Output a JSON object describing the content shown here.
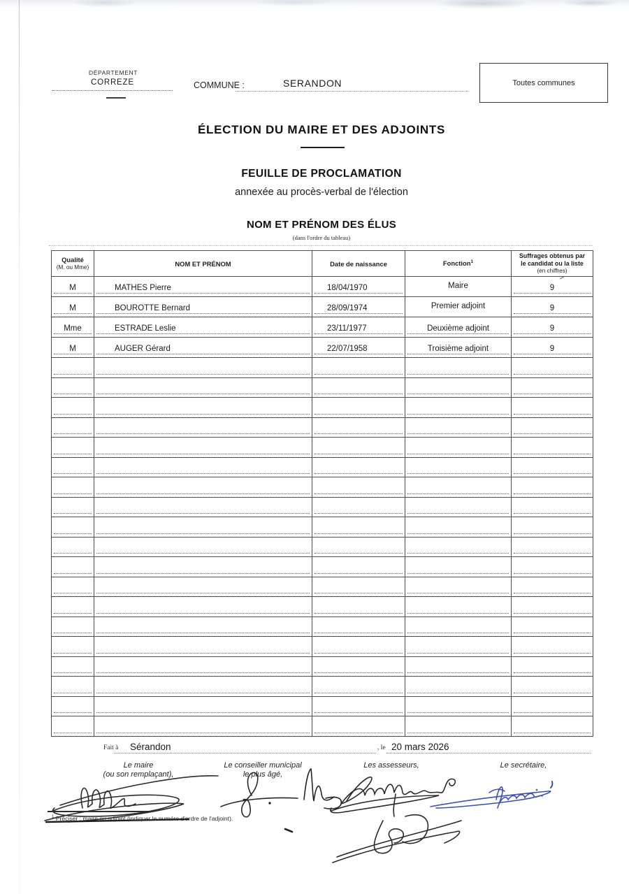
{
  "document": {
    "departement": {
      "label": "DÉPARTEMENT",
      "value": "CORREZE"
    },
    "commune": {
      "label": "COMMUNE :",
      "value": "SERANDON"
    },
    "corner_box_label": "Toutes communes",
    "main_title": "ÉLECTION DU MAIRE ET DES ADJOINTS",
    "subtitle": "FEUILLE DE PROCLAMATION",
    "subtitle_note": "annexée au procès-verbal de l'élection",
    "section_title": "NOM ET PRÉNOM DES ÉLUS",
    "section_note": "(dans l'ordre du tableau)"
  },
  "table": {
    "headers": {
      "qualite_l1": "Qualité",
      "qualite_l2": "(M. ou Mme)",
      "nom": "NOM ET PRÉNOM",
      "naissance": "Date de naissance",
      "fonction": "Fonction",
      "fonction_sup": "1",
      "suffrages_l1": "Suffrages obtenus par",
      "suffrages_l2": "le candidat ou la liste",
      "suffrages_l3": "(en chiffres)"
    },
    "rows": [
      {
        "qualite": "M",
        "nom": "MATHES Pierre",
        "naissance": "18/04/1970",
        "fonction": "Maire",
        "suffrages": "9"
      },
      {
        "qualite": "M",
        "nom": "BOUROTTE Bernard",
        "naissance": "28/09/1974",
        "fonction": "Premier adjoint",
        "suffrages": "9"
      },
      {
        "qualite": "Mme",
        "nom": "ESTRADE Leslie",
        "naissance": "23/11/1977",
        "fonction": "Deuxième adjoint",
        "suffrages": "9"
      },
      {
        "qualite": "M",
        "nom": "AUGER Gérard",
        "naissance": "22/07/1958",
        "fonction": "Troisième adjoint",
        "suffrages": "9"
      }
    ],
    "empty_row_count": 19
  },
  "closing": {
    "fait_a_label": "Fait à",
    "fait_a_value": "Sérandon",
    "le_label": ", le",
    "date_value": "20 mars 2026"
  },
  "signatures": {
    "maire_l1": "Le maire",
    "maire_l2": "(ou son remplaçant),",
    "conseiller_l1": "Le conseiller municipal",
    "conseiller_l2": "le plus âgé,",
    "assesseurs": "Les assesseurs,",
    "secretaire": "Le secrétaire,"
  },
  "footnote": {
    "sup": "1",
    "text": "Préciser : maire ou adjoint (indiquer le numéro d'ordre de l'adjoint)."
  },
  "colors": {
    "ink": "#222222",
    "blue_ink": "#3d4fb0",
    "border": "#4d4d4d"
  }
}
